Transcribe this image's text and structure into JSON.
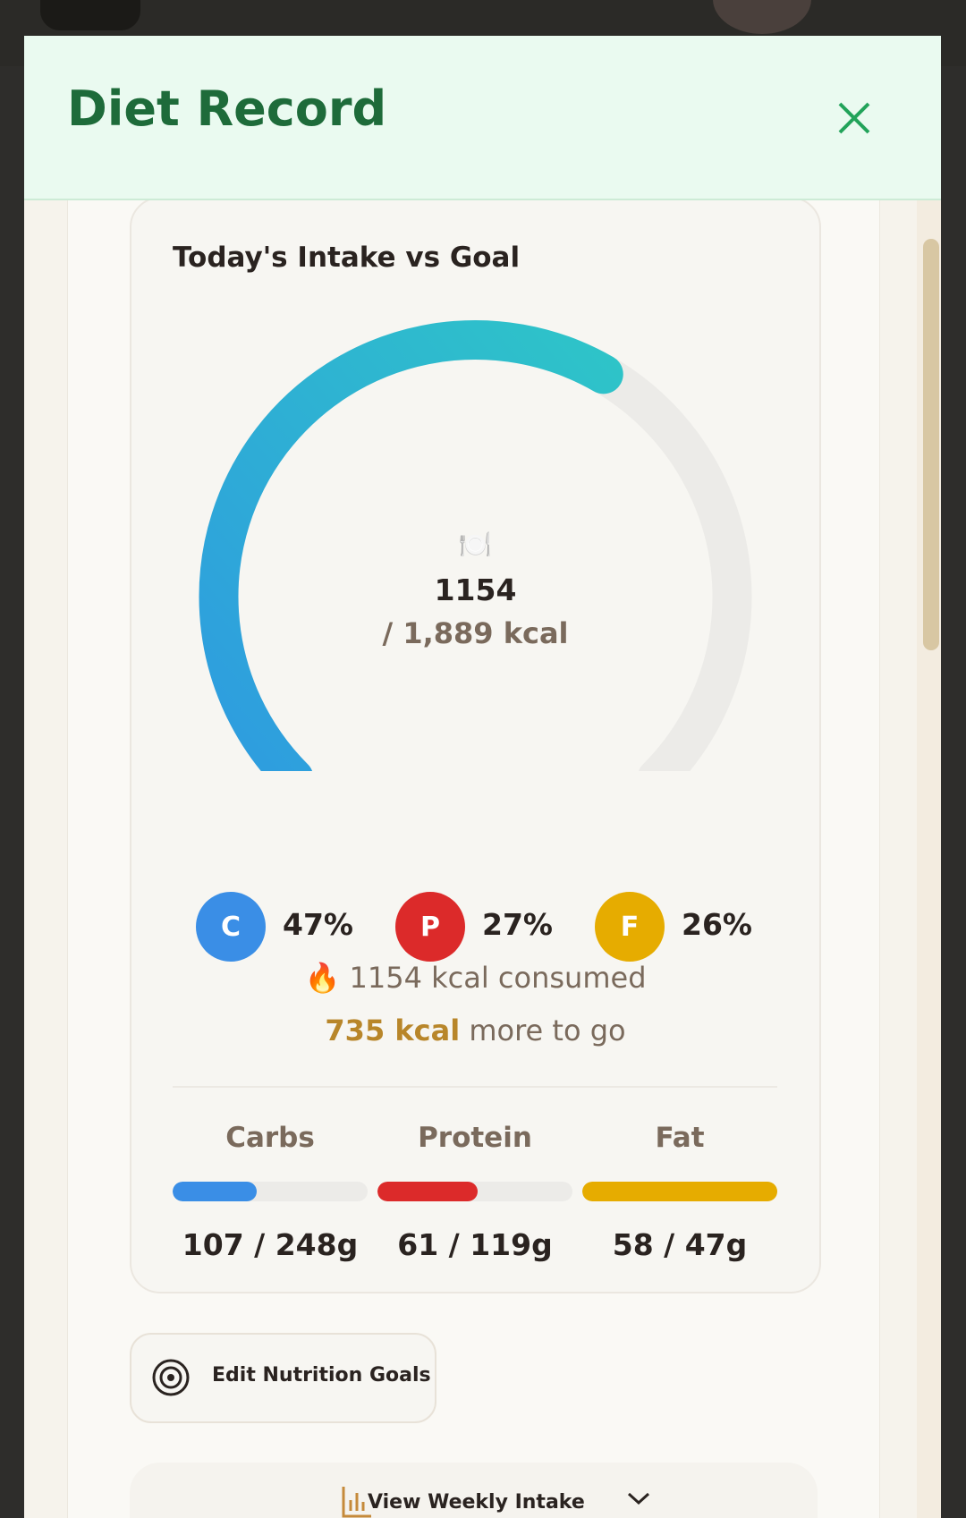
{
  "header": {
    "title": "Diet Record"
  },
  "intake": {
    "title": "Today's Intake vs Goal",
    "consumed": 1154,
    "goal": {
      "value": 1889,
      "label": "/ 1,889 kcal"
    },
    "gradient": [
      "#2e9be0",
      "#2ec4c8"
    ],
    "track_color": "#ecebe8"
  },
  "macros": [
    {
      "letter": "C",
      "label": "47%",
      "color": "#3a8ee6"
    },
    {
      "letter": "P",
      "label": "27%",
      "color": "#dc2a2a"
    },
    {
      "letter": "F",
      "label": "26%",
      "color": "#e6ac00"
    }
  ],
  "summary": {
    "consumed": "1154 kcal consumed",
    "remaining": "735 kcal",
    "remaining_suffix": "more to go"
  },
  "nutrients": [
    {
      "name": "Carbs",
      "consumed": 107,
      "goal": 248,
      "label": "107 / 248g",
      "color": "#3a8ee6"
    },
    {
      "name": "Protein",
      "consumed": 61,
      "goal": 119,
      "label": "61 / 119g",
      "color": "#dc2a2a"
    },
    {
      "name": "Fat",
      "consumed": 58,
      "goal": 47,
      "label": "58 / 47g",
      "color": "#e6ac00"
    }
  ],
  "buttons": {
    "edit_goals": "Edit Nutrition Goals",
    "weekly": "View Weekly Intake"
  }
}
